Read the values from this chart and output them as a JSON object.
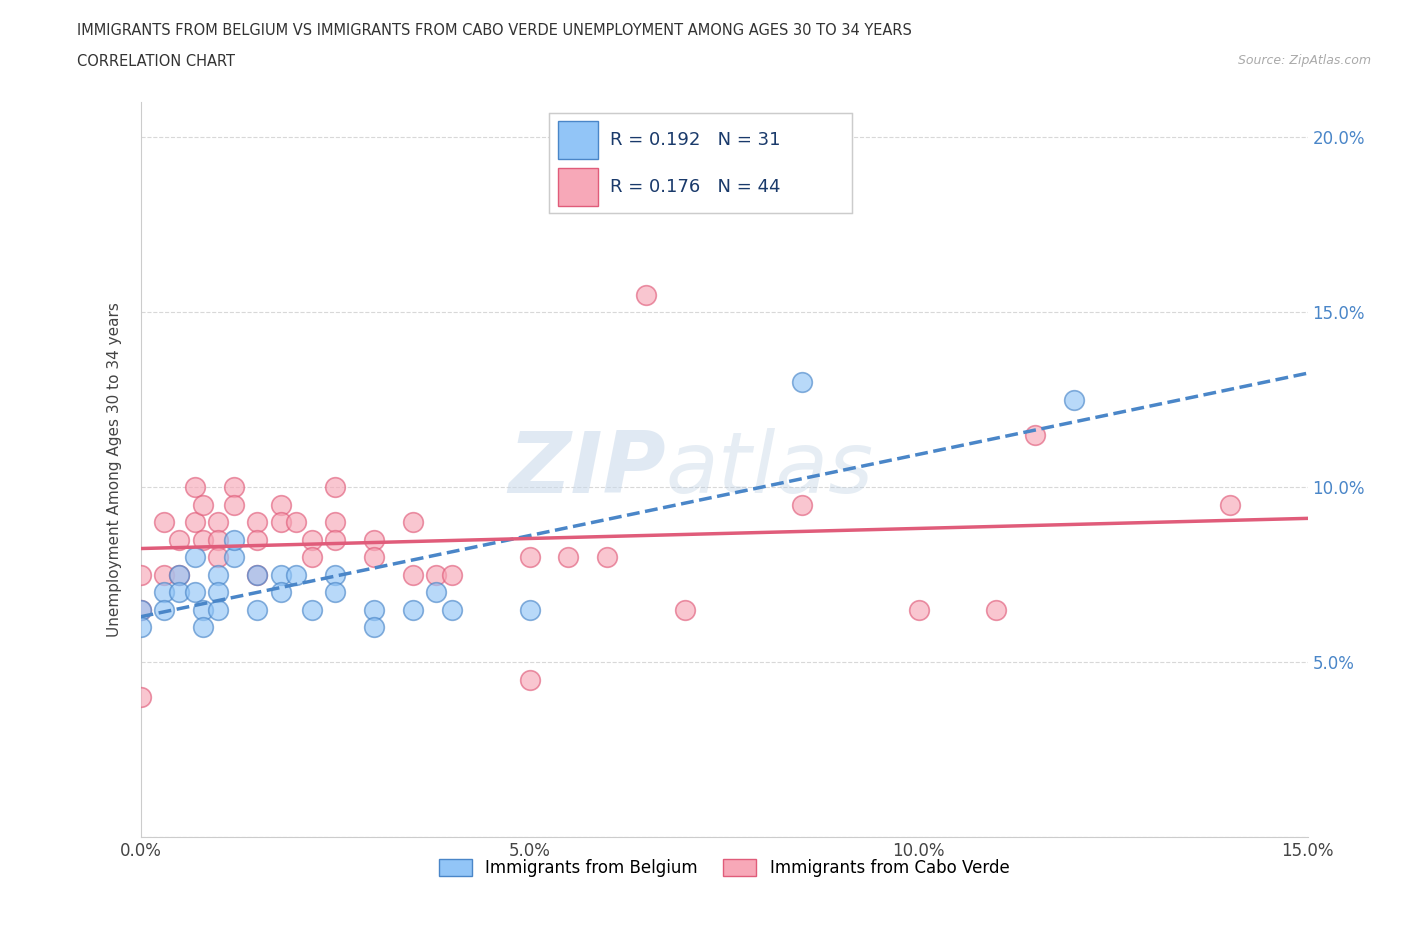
{
  "title_line1": "IMMIGRANTS FROM BELGIUM VS IMMIGRANTS FROM CABO VERDE UNEMPLOYMENT AMONG AGES 30 TO 34 YEARS",
  "title_line2": "CORRELATION CHART",
  "source_text": "Source: ZipAtlas.com",
  "ylabel": "Unemployment Among Ages 30 to 34 years",
  "xlim": [
    0.0,
    0.15
  ],
  "ylim": [
    0.0,
    0.21
  ],
  "xticks": [
    0.0,
    0.05,
    0.1,
    0.15
  ],
  "xtick_labels": [
    "0.0%",
    "5.0%",
    "10.0%",
    "15.0%"
  ],
  "yticks_left": [
    0.0,
    0.05,
    0.1,
    0.15,
    0.2
  ],
  "ytick_labels_left": [
    "",
    "",
    "",
    "",
    ""
  ],
  "yticks_right": [
    0.05,
    0.1,
    0.15,
    0.2
  ],
  "ytick_labels_right": [
    "5.0%",
    "10.0%",
    "15.0%",
    "20.0%"
  ],
  "legend_labels": [
    "Immigrants from Belgium",
    "Immigrants from Cabo Verde"
  ],
  "r_belgium": 0.192,
  "n_belgium": 31,
  "r_cabo": 0.176,
  "n_cabo": 44,
  "color_belgium": "#92c5f7",
  "color_cabo": "#f7a8b8",
  "color_line_belgium": "#4a86c8",
  "color_line_cabo": "#e05c7a",
  "belgium_x": [
    0.0,
    0.0,
    0.003,
    0.003,
    0.005,
    0.005,
    0.007,
    0.007,
    0.008,
    0.008,
    0.01,
    0.01,
    0.01,
    0.012,
    0.012,
    0.015,
    0.015,
    0.018,
    0.018,
    0.02,
    0.022,
    0.025,
    0.025,
    0.03,
    0.03,
    0.035,
    0.038,
    0.04,
    0.05,
    0.085,
    0.12
  ],
  "belgium_y": [
    0.065,
    0.06,
    0.07,
    0.065,
    0.075,
    0.07,
    0.08,
    0.07,
    0.065,
    0.06,
    0.075,
    0.07,
    0.065,
    0.08,
    0.085,
    0.075,
    0.065,
    0.075,
    0.07,
    0.075,
    0.065,
    0.075,
    0.07,
    0.065,
    0.06,
    0.065,
    0.07,
    0.065,
    0.065,
    0.13,
    0.125
  ],
  "cabo_x": [
    0.0,
    0.0,
    0.0,
    0.003,
    0.003,
    0.005,
    0.005,
    0.007,
    0.007,
    0.008,
    0.008,
    0.01,
    0.01,
    0.01,
    0.012,
    0.012,
    0.015,
    0.015,
    0.015,
    0.018,
    0.018,
    0.02,
    0.022,
    0.022,
    0.025,
    0.025,
    0.025,
    0.03,
    0.03,
    0.035,
    0.035,
    0.038,
    0.04,
    0.05,
    0.05,
    0.055,
    0.06,
    0.065,
    0.07,
    0.085,
    0.1,
    0.11,
    0.115,
    0.14
  ],
  "cabo_y": [
    0.075,
    0.065,
    0.04,
    0.09,
    0.075,
    0.085,
    0.075,
    0.1,
    0.09,
    0.095,
    0.085,
    0.09,
    0.085,
    0.08,
    0.1,
    0.095,
    0.09,
    0.085,
    0.075,
    0.095,
    0.09,
    0.09,
    0.085,
    0.08,
    0.1,
    0.09,
    0.085,
    0.085,
    0.08,
    0.09,
    0.075,
    0.075,
    0.075,
    0.08,
    0.045,
    0.08,
    0.08,
    0.155,
    0.065,
    0.095,
    0.065,
    0.065,
    0.115,
    0.095
  ],
  "watermark_zip": "ZIP",
  "watermark_atlas": "atlas",
  "background_color": "#ffffff",
  "grid_color": "#d8d8d8",
  "right_axis_color": "#4a86c8"
}
